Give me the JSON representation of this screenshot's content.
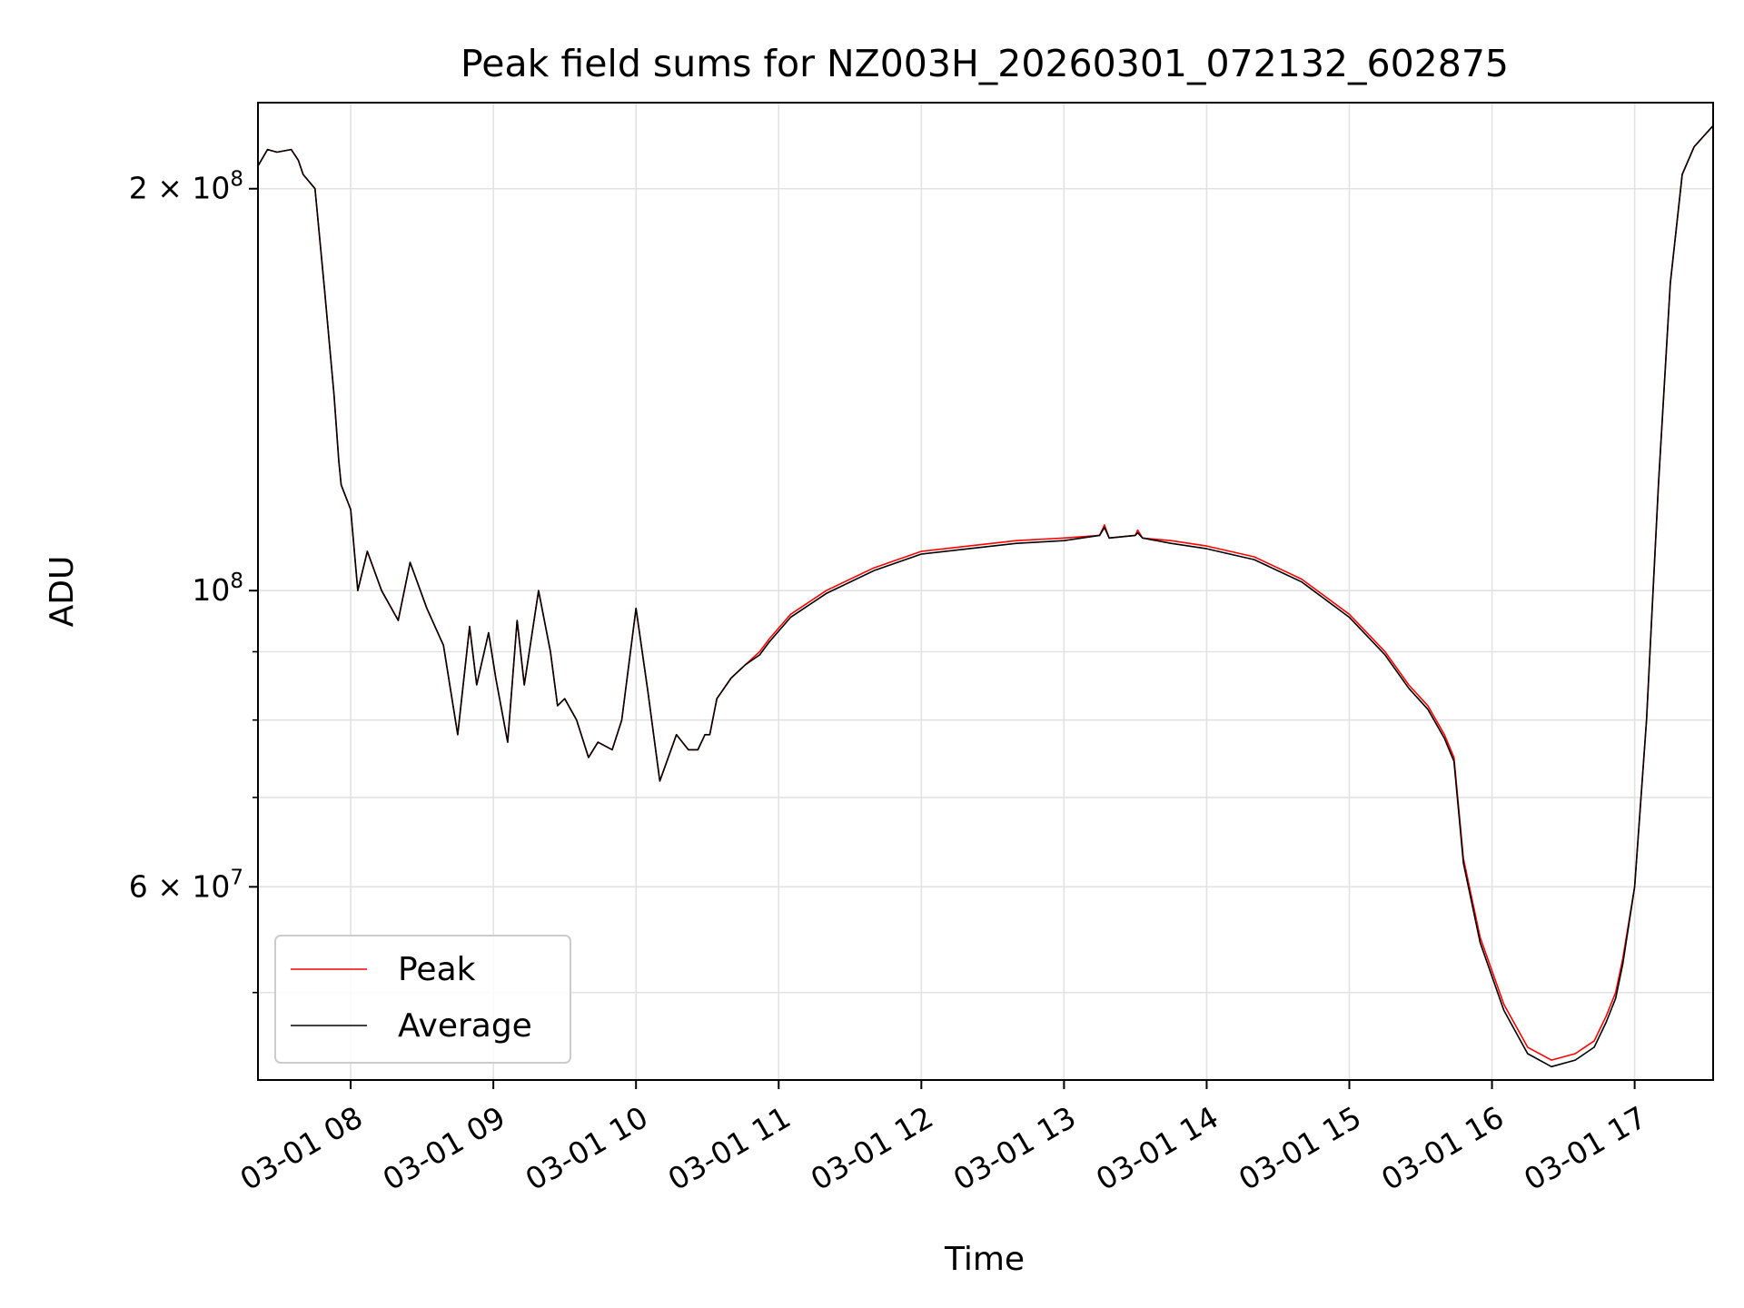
{
  "chart_data": {
    "type": "line",
    "title": "Peak field sums for NZ003H_20260301_072132_602875",
    "xlabel": "Time",
    "ylabel": "ADU",
    "yscale": "log",
    "xlim": [
      "2026-03-01 07:21",
      "2026-03-01 17:33"
    ],
    "ylim": [
      43000000,
      232000000
    ],
    "x_ticks": [
      "03-01 08",
      "03-01 09",
      "03-01 10",
      "03-01 11",
      "03-01 12",
      "03-01 13",
      "03-01 14",
      "03-01 15",
      "03-01 16",
      "03-01 17"
    ],
    "y_ticks": [
      {
        "value": 200000000,
        "mantissa": "2",
        "exponent": "8"
      },
      {
        "value": 100000000,
        "mantissa": "",
        "exponent": "8"
      },
      {
        "value": 60000000,
        "mantissa": "6",
        "exponent": "7"
      }
    ],
    "y_minor_ticks": [
      50000000,
      70000000,
      80000000,
      90000000
    ],
    "grid": true,
    "legend_position": "lower-left",
    "series": [
      {
        "name": "Peak",
        "color": "#ff0000",
        "x": [
          "2026-03-01 07:21",
          "2026-03-01 07:25",
          "2026-03-01 07:29",
          "2026-03-01 07:35",
          "2026-03-01 07:38",
          "2026-03-01 07:40",
          "2026-03-01 07:45",
          "2026-03-01 07:49",
          "2026-03-01 07:53",
          "2026-03-01 07:55",
          "2026-03-01 07:56",
          "2026-03-01 08:00",
          "2026-03-01 08:03",
          "2026-03-01 08:07",
          "2026-03-01 08:13",
          "2026-03-01 08:20",
          "2026-03-01 08:25",
          "2026-03-01 08:32",
          "2026-03-01 08:39",
          "2026-03-01 08:45",
          "2026-03-01 08:50",
          "2026-03-01 08:53",
          "2026-03-01 08:58",
          "2026-03-01 09:01",
          "2026-03-01 09:06",
          "2026-03-01 09:10",
          "2026-03-01 09:13",
          "2026-03-01 09:19",
          "2026-03-01 09:24",
          "2026-03-01 09:27",
          "2026-03-01 09:30",
          "2026-03-01 09:35",
          "2026-03-01 09:40",
          "2026-03-01 09:44",
          "2026-03-01 09:50",
          "2026-03-01 09:54",
          "2026-03-01 10:00",
          "2026-03-01 10:05",
          "2026-03-01 10:10",
          "2026-03-01 10:17",
          "2026-03-01 10:22",
          "2026-03-01 10:26",
          "2026-03-01 10:29",
          "2026-03-01 10:31",
          "2026-03-01 10:34",
          "2026-03-01 10:40",
          "2026-03-01 10:46",
          "2026-03-01 10:52",
          "2026-03-01 10:56",
          "2026-03-01 11:05",
          "2026-03-01 11:20",
          "2026-03-01 11:40",
          "2026-03-01 12:00",
          "2026-03-01 12:20",
          "2026-03-01 12:40",
          "2026-03-01 13:00",
          "2026-03-01 13:15",
          "2026-03-01 13:17",
          "2026-03-01 13:19",
          "2026-03-01 13:30",
          "2026-03-01 13:31",
          "2026-03-01 13:33",
          "2026-03-01 13:45",
          "2026-03-01 14:00",
          "2026-03-01 14:20",
          "2026-03-01 14:40",
          "2026-03-01 15:00",
          "2026-03-01 15:15",
          "2026-03-01 15:25",
          "2026-03-01 15:33",
          "2026-03-01 15:40",
          "2026-03-01 15:44",
          "2026-03-01 15:48",
          "2026-03-01 15:55",
          "2026-03-01 16:05",
          "2026-03-01 16:15",
          "2026-03-01 16:25",
          "2026-03-01 16:35",
          "2026-03-01 16:43",
          "2026-03-01 16:48",
          "2026-03-01 16:52",
          "2026-03-01 16:55",
          "2026-03-01 17:00",
          "2026-03-01 17:05",
          "2026-03-01 17:10",
          "2026-03-01 17:15",
          "2026-03-01 17:20",
          "2026-03-01 17:25",
          "2026-03-01 17:33"
        ],
        "values": [
          208000000,
          214000000,
          213000000,
          214000000,
          210000000,
          205000000,
          200000000,
          168000000,
          140000000,
          125000000,
          120000000,
          115000000,
          100000000,
          107000000,
          100000000,
          95000000,
          105000000,
          97000000,
          91000000,
          78000000,
          94000000,
          85000000,
          93000000,
          86000000,
          77000000,
          95000000,
          85000000,
          100000000,
          90000000,
          82000000,
          83000000,
          80000000,
          75000000,
          77000000,
          76000000,
          80000000,
          97000000,
          84000000,
          72000000,
          78000000,
          76000000,
          76000000,
          78000000,
          78000000,
          83000000,
          86000000,
          88000000,
          90000000,
          92000000,
          96000000,
          100000000,
          104000000,
          107000000,
          108000000,
          109000000,
          109500000,
          110000000,
          112000000,
          109500000,
          110000000,
          111000000,
          109500000,
          109000000,
          108000000,
          106000000,
          102000000,
          96000000,
          90000000,
          85000000,
          82000000,
          78000000,
          75000000,
          63000000,
          55000000,
          49000000,
          45500000,
          44500000,
          45000000,
          46000000,
          48000000,
          50000000,
          53000000,
          60000000,
          80000000,
          120000000,
          170000000,
          205000000,
          215000000,
          223000000
        ]
      },
      {
        "name": "Average",
        "color": "#000000",
        "x": [
          "2026-03-01 07:21",
          "2026-03-01 07:25",
          "2026-03-01 07:29",
          "2026-03-01 07:35",
          "2026-03-01 07:38",
          "2026-03-01 07:40",
          "2026-03-01 07:45",
          "2026-03-01 07:49",
          "2026-03-01 07:53",
          "2026-03-01 07:55",
          "2026-03-01 07:56",
          "2026-03-01 08:00",
          "2026-03-01 08:03",
          "2026-03-01 08:07",
          "2026-03-01 08:13",
          "2026-03-01 08:20",
          "2026-03-01 08:25",
          "2026-03-01 08:32",
          "2026-03-01 08:39",
          "2026-03-01 08:45",
          "2026-03-01 08:50",
          "2026-03-01 08:53",
          "2026-03-01 08:58",
          "2026-03-01 09:01",
          "2026-03-01 09:06",
          "2026-03-01 09:10",
          "2026-03-01 09:13",
          "2026-03-01 09:19",
          "2026-03-01 09:24",
          "2026-03-01 09:27",
          "2026-03-01 09:30",
          "2026-03-01 09:35",
          "2026-03-01 09:40",
          "2026-03-01 09:44",
          "2026-03-01 09:50",
          "2026-03-01 09:54",
          "2026-03-01 10:00",
          "2026-03-01 10:05",
          "2026-03-01 10:10",
          "2026-03-01 10:17",
          "2026-03-01 10:22",
          "2026-03-01 10:26",
          "2026-03-01 10:29",
          "2026-03-01 10:31",
          "2026-03-01 10:34",
          "2026-03-01 10:40",
          "2026-03-01 10:46",
          "2026-03-01 10:52",
          "2026-03-01 10:56",
          "2026-03-01 11:05",
          "2026-03-01 11:20",
          "2026-03-01 11:40",
          "2026-03-01 12:00",
          "2026-03-01 12:20",
          "2026-03-01 12:40",
          "2026-03-01 13:00",
          "2026-03-01 13:15",
          "2026-03-01 13:17",
          "2026-03-01 13:19",
          "2026-03-01 13:30",
          "2026-03-01 13:31",
          "2026-03-01 13:33",
          "2026-03-01 13:45",
          "2026-03-01 14:00",
          "2026-03-01 14:20",
          "2026-03-01 14:40",
          "2026-03-01 15:00",
          "2026-03-01 15:15",
          "2026-03-01 15:25",
          "2026-03-01 15:33",
          "2026-03-01 15:40",
          "2026-03-01 15:44",
          "2026-03-01 15:48",
          "2026-03-01 15:55",
          "2026-03-01 16:05",
          "2026-03-01 16:15",
          "2026-03-01 16:25",
          "2026-03-01 16:35",
          "2026-03-01 16:43",
          "2026-03-01 16:48",
          "2026-03-01 16:52",
          "2026-03-01 16:55",
          "2026-03-01 17:00",
          "2026-03-01 17:05",
          "2026-03-01 17:10",
          "2026-03-01 17:15",
          "2026-03-01 17:20",
          "2026-03-01 17:25",
          "2026-03-01 17:33"
        ],
        "values": [
          208000000,
          214000000,
          213000000,
          214000000,
          210000000,
          205000000,
          200000000,
          168000000,
          140000000,
          125000000,
          120000000,
          115000000,
          100000000,
          107000000,
          100000000,
          95000000,
          105000000,
          97000000,
          91000000,
          78000000,
          94000000,
          85000000,
          93000000,
          86000000,
          77000000,
          95000000,
          85000000,
          100000000,
          90000000,
          82000000,
          83000000,
          80000000,
          75000000,
          77000000,
          76000000,
          80000000,
          97000000,
          84000000,
          72000000,
          78000000,
          76000000,
          76000000,
          78000000,
          78000000,
          83000000,
          86000000,
          88000000,
          89500000,
          91500000,
          95500000,
          99500000,
          103500000,
          106500000,
          107500000,
          108500000,
          109000000,
          110000000,
          111500000,
          109500000,
          110000000,
          110500000,
          109500000,
          108500000,
          107500000,
          105500000,
          101500000,
          95500000,
          89500000,
          84500000,
          81500000,
          77500000,
          74500000,
          62500000,
          54500000,
          48500000,
          45000000,
          44000000,
          44500000,
          45500000,
          47500000,
          49500000,
          52500000,
          60000000,
          80000000,
          120000000,
          170000000,
          205000000,
          215000000,
          223000000
        ]
      }
    ]
  }
}
